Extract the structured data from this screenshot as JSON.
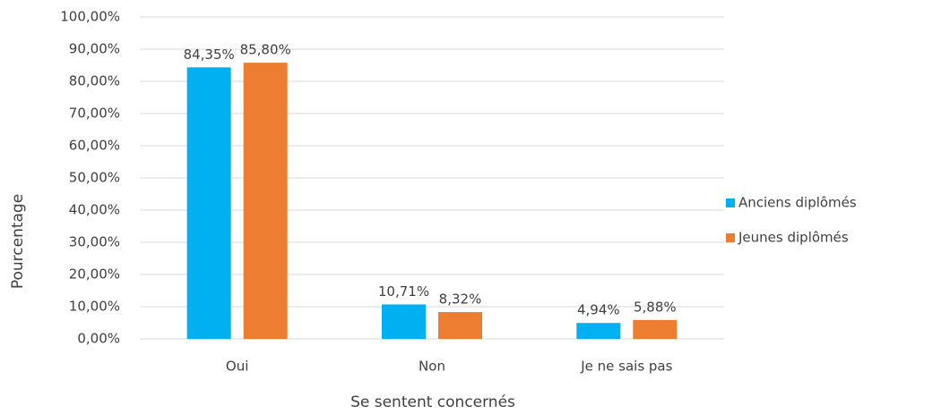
{
  "chart_data": {
    "type": "bar",
    "categories": [
      "Oui",
      "Non",
      "Je ne sais pas"
    ],
    "series": [
      {
        "name": "Anciens diplômés",
        "color": "#00b0f0",
        "values": [
          84.35,
          10.71,
          4.94
        ],
        "value_labels": [
          "84,35%",
          "10,71%",
          "4,94%"
        ]
      },
      {
        "name": "Jeunes diplômés",
        "color": "#ed7d31",
        "values": [
          85.8,
          8.32,
          5.88
        ],
        "value_labels": [
          "85,80%",
          "8,32%",
          "5,88%"
        ]
      }
    ],
    "x_label": "Se sentent concernés",
    "y_label": "Pourcentage",
    "ylim": [
      0,
      100
    ],
    "yticks": [
      {
        "value": 0,
        "label": "0,00%"
      },
      {
        "value": 10,
        "label": "10,00%"
      },
      {
        "value": 20,
        "label": "20,00%"
      },
      {
        "value": 30,
        "label": "30,00%"
      },
      {
        "value": 40,
        "label": "40,00%"
      },
      {
        "value": 50,
        "label": "50,00%"
      },
      {
        "value": 60,
        "label": "60,00%"
      },
      {
        "value": 70,
        "label": "70,00%"
      },
      {
        "value": 80,
        "label": "80,00%"
      },
      {
        "value": 90,
        "label": "90,00%"
      },
      {
        "value": 100,
        "label": "100,00%"
      }
    ],
    "grid": true,
    "legend": "right"
  }
}
